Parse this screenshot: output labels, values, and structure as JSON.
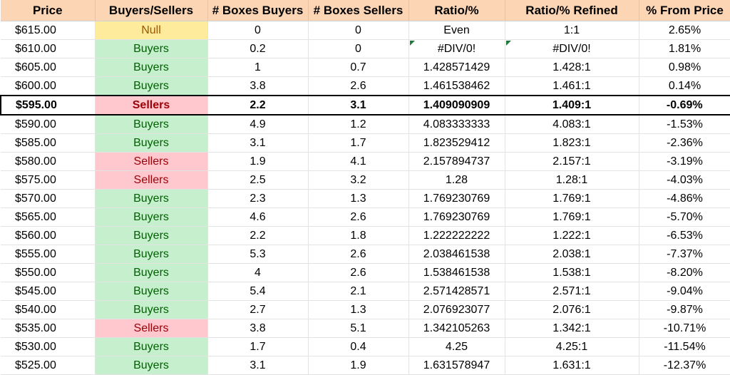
{
  "headers": [
    "Price",
    "Buyers/Sellers",
    "# Boxes Buyers",
    "# Boxes Sellers",
    "Ratio/%",
    "Ratio/% Refined",
    "% From Price"
  ],
  "highlight_row_index": 4,
  "error_flag_rows": [
    1
  ],
  "rows": [
    [
      "$615.00",
      "Null",
      "0",
      "0",
      "Even",
      "1:1",
      "2.65%"
    ],
    [
      "$610.00",
      "Buyers",
      "0.2",
      "0",
      "#DIV/0!",
      "#DIV/0!",
      "1.81%"
    ],
    [
      "$605.00",
      "Buyers",
      "1",
      "0.7",
      "1.428571429",
      "1.428:1",
      "0.98%"
    ],
    [
      "$600.00",
      "Buyers",
      "3.8",
      "2.6",
      "1.461538462",
      "1.461:1",
      "0.14%"
    ],
    [
      "$595.00",
      "Sellers",
      "2.2",
      "3.1",
      "1.409090909",
      "1.409:1",
      "-0.69%"
    ],
    [
      "$590.00",
      "Buyers",
      "4.9",
      "1.2",
      "4.083333333",
      "4.083:1",
      "-1.53%"
    ],
    [
      "$585.00",
      "Buyers",
      "3.1",
      "1.7",
      "1.823529412",
      "1.823:1",
      "-2.36%"
    ],
    [
      "$580.00",
      "Sellers",
      "1.9",
      "4.1",
      "2.157894737",
      "2.157:1",
      "-3.19%"
    ],
    [
      "$575.00",
      "Sellers",
      "2.5",
      "3.2",
      "1.28",
      "1.28:1",
      "-4.03%"
    ],
    [
      "$570.00",
      "Buyers",
      "2.3",
      "1.3",
      "1.769230769",
      "1.769:1",
      "-4.86%"
    ],
    [
      "$565.00",
      "Buyers",
      "4.6",
      "2.6",
      "1.769230769",
      "1.769:1",
      "-5.70%"
    ],
    [
      "$560.00",
      "Buyers",
      "2.2",
      "1.8",
      "1.222222222",
      "1.222:1",
      "-6.53%"
    ],
    [
      "$555.00",
      "Buyers",
      "5.3",
      "2.6",
      "2.038461538",
      "2.038:1",
      "-7.37%"
    ],
    [
      "$550.00",
      "Buyers",
      "4",
      "2.6",
      "1.538461538",
      "1.538:1",
      "-8.20%"
    ],
    [
      "$545.00",
      "Buyers",
      "5.4",
      "2.1",
      "2.571428571",
      "2.571:1",
      "-9.04%"
    ],
    [
      "$540.00",
      "Buyers",
      "2.7",
      "1.3",
      "2.076923077",
      "2.076:1",
      "-9.87%"
    ],
    [
      "$535.00",
      "Sellers",
      "3.8",
      "5.1",
      "1.342105263",
      "1.342:1",
      "-10.71%"
    ],
    [
      "$530.00",
      "Buyers",
      "1.7",
      "0.4",
      "4.25",
      "4.25:1",
      "-11.54%"
    ],
    [
      "$525.00",
      "Buyers",
      "3.1",
      "1.9",
      "1.631578947",
      "1.631:1",
      "-12.37%"
    ]
  ],
  "colors": {
    "header_bg": "#fcd5b4",
    "buyers_bg": "#c6efce",
    "buyers_text": "#006100",
    "sellers_bg": "#ffc7ce",
    "sellers_text": "#9c0006",
    "null_bg": "#ffeb9c",
    "null_text": "#9c5700",
    "error_flag": "#1e7a3c"
  }
}
